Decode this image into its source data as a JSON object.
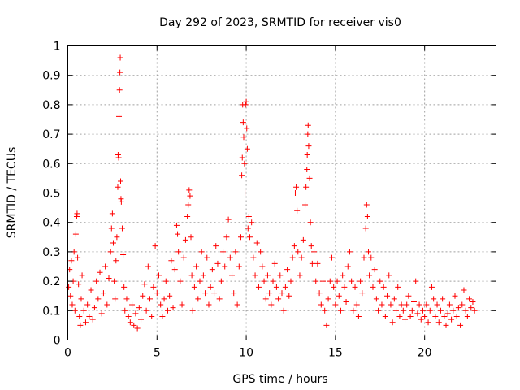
{
  "chart_data": {
    "type": "scatter",
    "title": "Day 292 of 2023, SRMTID for receiver vis0",
    "xlabel": "GPS time / hours",
    "ylabel": "SRMTID / TECUs",
    "xlim": [
      0,
      24
    ],
    "ylim": [
      0,
      1
    ],
    "grid": true,
    "marker": "plus",
    "color": "#ff0000",
    "x_ticks": [
      0,
      5,
      10,
      15,
      20
    ],
    "x_tick_labels": [
      "0",
      "5",
      "10",
      "15",
      "20"
    ],
    "y_ticks": [
      0,
      0.1,
      0.2,
      0.3,
      0.4,
      0.5,
      0.6,
      0.7,
      0.8,
      0.9,
      1
    ],
    "y_tick_labels": [
      "0",
      "0.1",
      "0.2",
      "0.3",
      "0.4",
      "0.5",
      "0.6",
      "0.7",
      "0.8",
      "0.9",
      "1"
    ],
    "series": [
      {
        "name": "vis0",
        "x_range": [
          0,
          22.8
        ],
        "points": [
          [
            0.05,
            0.18
          ],
          [
            0.1,
            0.24
          ],
          [
            0.15,
            0.15
          ],
          [
            0.2,
            0.27
          ],
          [
            0.25,
            0.12
          ],
          [
            0.3,
            0.2
          ],
          [
            0.35,
            0.3
          ],
          [
            0.4,
            0.1
          ],
          [
            0.45,
            0.36
          ],
          [
            0.5,
            0.42
          ],
          [
            0.52,
            0.43
          ],
          [
            0.55,
            0.28
          ],
          [
            0.6,
            0.19
          ],
          [
            0.65,
            0.08
          ],
          [
            0.7,
            0.05
          ],
          [
            0.75,
            0.14
          ],
          [
            0.8,
            0.22
          ],
          [
            0.9,
            0.1
          ],
          [
            1.0,
            0.06
          ],
          [
            1.1,
            0.12
          ],
          [
            1.2,
            0.08
          ],
          [
            1.3,
            0.17
          ],
          [
            1.4,
            0.07
          ],
          [
            1.5,
            0.11
          ],
          [
            1.6,
            0.2
          ],
          [
            1.7,
            0.14
          ],
          [
            1.8,
            0.23
          ],
          [
            1.9,
            0.09
          ],
          [
            2.0,
            0.16
          ],
          [
            2.1,
            0.25
          ],
          [
            2.2,
            0.12
          ],
          [
            2.3,
            0.21
          ],
          [
            2.4,
            0.3
          ],
          [
            2.45,
            0.38
          ],
          [
            2.5,
            0.43
          ],
          [
            2.55,
            0.33
          ],
          [
            2.6,
            0.2
          ],
          [
            2.65,
            0.14
          ],
          [
            2.7,
            0.27
          ],
          [
            2.75,
            0.35
          ],
          [
            2.8,
            0.52
          ],
          [
            2.82,
            0.63
          ],
          [
            2.85,
            0.62
          ],
          [
            2.87,
            0.76
          ],
          [
            2.9,
            0.85
          ],
          [
            2.92,
            0.91
          ],
          [
            2.94,
            0.96
          ],
          [
            2.96,
            0.54
          ],
          [
            2.98,
            0.48
          ],
          [
            3.0,
            0.47
          ],
          [
            3.05,
            0.38
          ],
          [
            3.1,
            0.29
          ],
          [
            3.15,
            0.18
          ],
          [
            3.2,
            0.1
          ],
          [
            3.3,
            0.14
          ],
          [
            3.4,
            0.08
          ],
          [
            3.5,
            0.06
          ],
          [
            3.6,
            0.12
          ],
          [
            3.7,
            0.05
          ],
          [
            3.8,
            0.09
          ],
          [
            3.9,
            0.04
          ],
          [
            4.0,
            0.11
          ],
          [
            4.1,
            0.07
          ],
          [
            4.2,
            0.15
          ],
          [
            4.3,
            0.19
          ],
          [
            4.4,
            0.1
          ],
          [
            4.5,
            0.25
          ],
          [
            4.6,
            0.14
          ],
          [
            4.7,
            0.08
          ],
          [
            4.8,
            0.18
          ],
          [
            4.9,
            0.32
          ],
          [
            5.0,
            0.16
          ],
          [
            5.1,
            0.22
          ],
          [
            5.2,
            0.12
          ],
          [
            5.3,
            0.08
          ],
          [
            5.4,
            0.14
          ],
          [
            5.5,
            0.2
          ],
          [
            5.6,
            0.1
          ],
          [
            5.7,
            0.15
          ],
          [
            5.8,
            0.27
          ],
          [
            5.9,
            0.11
          ],
          [
            6.0,
            0.24
          ],
          [
            6.1,
            0.39
          ],
          [
            6.15,
            0.36
          ],
          [
            6.2,
            0.3
          ],
          [
            6.3,
            0.2
          ],
          [
            6.4,
            0.12
          ],
          [
            6.5,
            0.28
          ],
          [
            6.6,
            0.34
          ],
          [
            6.7,
            0.42
          ],
          [
            6.75,
            0.46
          ],
          [
            6.8,
            0.51
          ],
          [
            6.85,
            0.49
          ],
          [
            6.9,
            0.35
          ],
          [
            6.95,
            0.22
          ],
          [
            7.0,
            0.1
          ],
          [
            7.1,
            0.18
          ],
          [
            7.2,
            0.25
          ],
          [
            7.3,
            0.14
          ],
          [
            7.4,
            0.2
          ],
          [
            7.5,
            0.3
          ],
          [
            7.6,
            0.22
          ],
          [
            7.7,
            0.16
          ],
          [
            7.8,
            0.28
          ],
          [
            7.9,
            0.12
          ],
          [
            8.0,
            0.18
          ],
          [
            8.1,
            0.24
          ],
          [
            8.2,
            0.16
          ],
          [
            8.3,
            0.32
          ],
          [
            8.4,
            0.26
          ],
          [
            8.5,
            0.14
          ],
          [
            8.6,
            0.2
          ],
          [
            8.7,
            0.3
          ],
          [
            8.8,
            0.25
          ],
          [
            8.9,
            0.35
          ],
          [
            9.0,
            0.41
          ],
          [
            9.1,
            0.28
          ],
          [
            9.2,
            0.22
          ],
          [
            9.3,
            0.16
          ],
          [
            9.4,
            0.3
          ],
          [
            9.5,
            0.12
          ],
          [
            9.6,
            0.25
          ],
          [
            9.7,
            0.35
          ],
          [
            9.75,
            0.56
          ],
          [
            9.78,
            0.62
          ],
          [
            9.8,
            0.8
          ],
          [
            9.83,
            0.74
          ],
          [
            9.86,
            0.69
          ],
          [
            9.9,
            0.6
          ],
          [
            9.93,
            0.5
          ],
          [
            9.96,
            0.8
          ],
          [
            10.0,
            0.81
          ],
          [
            10.03,
            0.72
          ],
          [
            10.06,
            0.65
          ],
          [
            10.1,
            0.38
          ],
          [
            10.15,
            0.42
          ],
          [
            10.2,
            0.35
          ],
          [
            10.3,
            0.4
          ],
          [
            10.4,
            0.28
          ],
          [
            10.5,
            0.22
          ],
          [
            10.6,
            0.33
          ],
          [
            10.7,
            0.18
          ],
          [
            10.8,
            0.3
          ],
          [
            10.9,
            0.25
          ],
          [
            11.0,
            0.2
          ],
          [
            11.1,
            0.14
          ],
          [
            11.2,
            0.22
          ],
          [
            11.3,
            0.16
          ],
          [
            11.4,
            0.12
          ],
          [
            11.5,
            0.2
          ],
          [
            11.6,
            0.26
          ],
          [
            11.7,
            0.18
          ],
          [
            11.8,
            0.14
          ],
          [
            11.9,
            0.22
          ],
          [
            12.0,
            0.16
          ],
          [
            12.1,
            0.1
          ],
          [
            12.2,
            0.18
          ],
          [
            12.3,
            0.24
          ],
          [
            12.4,
            0.15
          ],
          [
            12.5,
            0.2
          ],
          [
            12.6,
            0.28
          ],
          [
            12.7,
            0.32
          ],
          [
            12.75,
            0.5
          ],
          [
            12.8,
            0.52
          ],
          [
            12.85,
            0.44
          ],
          [
            12.9,
            0.3
          ],
          [
            13.0,
            0.22
          ],
          [
            13.1,
            0.28
          ],
          [
            13.2,
            0.34
          ],
          [
            13.3,
            0.46
          ],
          [
            13.35,
            0.52
          ],
          [
            13.4,
            0.58
          ],
          [
            13.42,
            0.63
          ],
          [
            13.45,
            0.7
          ],
          [
            13.47,
            0.73
          ],
          [
            13.5,
            0.66
          ],
          [
            13.55,
            0.55
          ],
          [
            13.6,
            0.4
          ],
          [
            13.65,
            0.32
          ],
          [
            13.7,
            0.26
          ],
          [
            13.8,
            0.3
          ],
          [
            13.9,
            0.2
          ],
          [
            14.0,
            0.26
          ],
          [
            14.1,
            0.16
          ],
          [
            14.2,
            0.12
          ],
          [
            14.3,
            0.2
          ],
          [
            14.4,
            0.1
          ],
          [
            14.5,
            0.05
          ],
          [
            14.6,
            0.14
          ],
          [
            14.7,
            0.2
          ],
          [
            14.8,
            0.28
          ],
          [
            14.9,
            0.18
          ],
          [
            15.0,
            0.12
          ],
          [
            15.1,
            0.2
          ],
          [
            15.2,
            0.15
          ],
          [
            15.3,
            0.1
          ],
          [
            15.4,
            0.22
          ],
          [
            15.5,
            0.18
          ],
          [
            15.6,
            0.13
          ],
          [
            15.7,
            0.25
          ],
          [
            15.8,
            0.3
          ],
          [
            15.9,
            0.2
          ],
          [
            16.0,
            0.1
          ],
          [
            16.1,
            0.18
          ],
          [
            16.2,
            0.12
          ],
          [
            16.3,
            0.08
          ],
          [
            16.4,
            0.2
          ],
          [
            16.5,
            0.16
          ],
          [
            16.6,
            0.28
          ],
          [
            16.7,
            0.38
          ],
          [
            16.75,
            0.46
          ],
          [
            16.8,
            0.42
          ],
          [
            16.85,
            0.3
          ],
          [
            16.9,
            0.22
          ],
          [
            17.0,
            0.28
          ],
          [
            17.1,
            0.18
          ],
          [
            17.2,
            0.24
          ],
          [
            17.3,
            0.14
          ],
          [
            17.4,
            0.1
          ],
          [
            17.5,
            0.2
          ],
          [
            17.6,
            0.12
          ],
          [
            17.7,
            0.18
          ],
          [
            17.8,
            0.08
          ],
          [
            17.9,
            0.15
          ],
          [
            18.0,
            0.22
          ],
          [
            18.1,
            0.12
          ],
          [
            18.2,
            0.06
          ],
          [
            18.3,
            0.14
          ],
          [
            18.4,
            0.1
          ],
          [
            18.5,
            0.18
          ],
          [
            18.6,
            0.08
          ],
          [
            18.7,
            0.12
          ],
          [
            18.8,
            0.1
          ],
          [
            18.9,
            0.07
          ],
          [
            19.0,
            0.12
          ],
          [
            19.1,
            0.15
          ],
          [
            19.2,
            0.08
          ],
          [
            19.3,
            0.1
          ],
          [
            19.4,
            0.13
          ],
          [
            19.5,
            0.2
          ],
          [
            19.6,
            0.09
          ],
          [
            19.7,
            0.12
          ],
          [
            19.8,
            0.07
          ],
          [
            19.9,
            0.1
          ],
          [
            20.0,
            0.08
          ],
          [
            20.1,
            0.12
          ],
          [
            20.2,
            0.06
          ],
          [
            20.3,
            0.1
          ],
          [
            20.4,
            0.18
          ],
          [
            20.5,
            0.14
          ],
          [
            20.6,
            0.08
          ],
          [
            20.7,
            0.12
          ],
          [
            20.8,
            0.06
          ],
          [
            20.9,
            0.1
          ],
          [
            21.0,
            0.14
          ],
          [
            21.1,
            0.08
          ],
          [
            21.2,
            0.05
          ],
          [
            21.3,
            0.09
          ],
          [
            21.4,
            0.12
          ],
          [
            21.5,
            0.07
          ],
          [
            21.6,
            0.1
          ],
          [
            21.7,
            0.15
          ],
          [
            21.8,
            0.08
          ],
          [
            21.9,
            0.11
          ],
          [
            22.0,
            0.05
          ],
          [
            22.1,
            0.12
          ],
          [
            22.2,
            0.17
          ],
          [
            22.3,
            0.1
          ],
          [
            22.4,
            0.08
          ],
          [
            22.5,
            0.14
          ],
          [
            22.6,
            0.11
          ],
          [
            22.7,
            0.13
          ],
          [
            22.8,
            0.1
          ]
        ]
      }
    ]
  }
}
